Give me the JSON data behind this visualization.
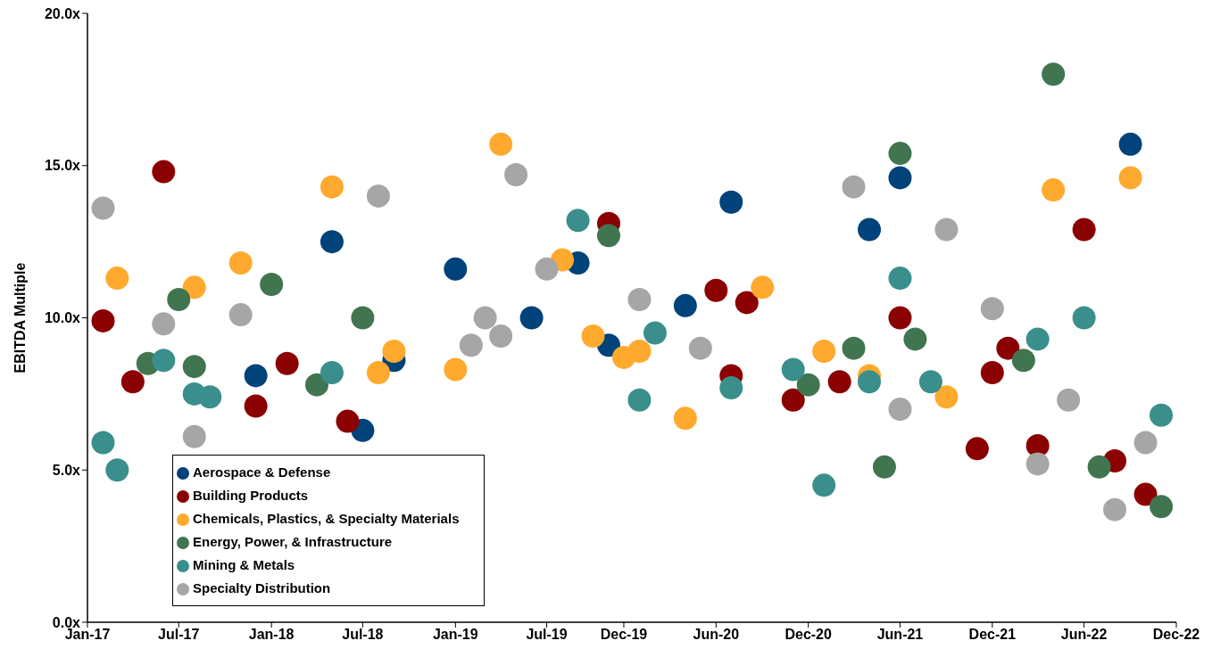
{
  "chart_data": {
    "type": "scatter",
    "ylabel": "EBITDA Multiple",
    "xlim": [
      "2017-01",
      "2022-12"
    ],
    "xticks": [
      {
        "value": "2017-01",
        "label": "Jan-17"
      },
      {
        "value": "2017-07",
        "label": "Jul-17"
      },
      {
        "value": "2018-01",
        "label": "Jan-18"
      },
      {
        "value": "2018-07",
        "label": "Jul-18"
      },
      {
        "value": "2019-01",
        "label": "Jan-19"
      },
      {
        "value": "2019-07",
        "label": "Jul-19"
      },
      {
        "value": "2019-12",
        "label": "Dec-19"
      },
      {
        "value": "2020-06",
        "label": "Jun-20"
      },
      {
        "value": "2020-12",
        "label": "Dec-20"
      },
      {
        "value": "2021-06",
        "label": "Jun-21"
      },
      {
        "value": "2021-12",
        "label": "Dec-21"
      },
      {
        "value": "2022-06",
        "label": "Jun-22"
      },
      {
        "value": "2022-12",
        "label": "Dec-22"
      }
    ],
    "ylim": [
      0,
      20
    ],
    "yticks": [
      {
        "value": 0,
        "label": "0.0x"
      },
      {
        "value": 5,
        "label": "5.0x"
      },
      {
        "value": 10,
        "label": "10.0x"
      },
      {
        "value": 15,
        "label": "15.0x"
      },
      {
        "value": 20,
        "label": "20.0x"
      }
    ],
    "grid": false,
    "legend": "bottom left",
    "marker": "circle",
    "series": [
      {
        "name": "Aerospace & Defense",
        "color": "#00427a",
        "x": [
          "2017-12",
          "2018-05",
          "2018-07",
          "2018-09",
          "2019-01",
          "2019-06",
          "2019-09",
          "2019-11",
          "2020-04",
          "2020-07",
          "2021-04",
          "2021-06",
          "2022-09"
        ],
        "values": [
          8.1,
          12.5,
          6.3,
          8.6,
          11.6,
          10.0,
          11.8,
          9.1,
          10.4,
          13.8,
          12.9,
          14.6,
          15.7
        ]
      },
      {
        "name": "Building Products",
        "color": "#8b0000",
        "x": [
          "2017-02",
          "2017-04",
          "2017-06",
          "2017-12",
          "2018-02",
          "2018-06",
          "2019-11",
          "2020-06",
          "2020-07",
          "2020-08",
          "2020-11",
          "2021-02",
          "2021-06",
          "2021-11",
          "2021-12",
          "2022-01",
          "2022-03",
          "2022-06",
          "2022-08",
          "2022-10"
        ],
        "values": [
          9.9,
          7.9,
          14.8,
          7.1,
          8.5,
          6.6,
          13.1,
          10.9,
          8.1,
          10.5,
          7.3,
          7.9,
          10.0,
          5.7,
          8.2,
          9.0,
          5.8,
          12.9,
          5.3,
          4.2
        ]
      },
      {
        "name": "Chemicals, Plastics, & Specialty Materials",
        "color": "#ffa92e",
        "x": [
          "2017-03",
          "2017-08",
          "2017-11",
          "2018-05",
          "2018-08",
          "2018-09",
          "2019-01",
          "2019-04",
          "2019-08",
          "2019-10",
          "2019-12",
          "2020-01",
          "2020-04",
          "2020-09",
          "2021-01",
          "2021-04",
          "2021-09",
          "2022-04",
          "2022-09"
        ],
        "values": [
          11.3,
          11.0,
          11.8,
          14.3,
          8.2,
          8.9,
          8.3,
          15.7,
          11.9,
          9.4,
          8.7,
          8.9,
          6.7,
          11.0,
          8.9,
          8.1,
          7.4,
          14.2,
          14.6
        ]
      },
      {
        "name": "Energy, Power, & Infrastructure",
        "color": "#417550",
        "x": [
          "2017-05",
          "2017-07",
          "2017-08",
          "2018-01",
          "2018-04",
          "2018-07",
          "2019-11",
          "2020-12",
          "2021-03",
          "2021-05",
          "2021-06",
          "2021-07",
          "2022-02",
          "2022-04",
          "2022-07",
          "2022-11"
        ],
        "values": [
          8.5,
          10.6,
          8.4,
          11.1,
          7.8,
          10.0,
          12.7,
          7.8,
          9.0,
          5.1,
          15.4,
          9.3,
          8.6,
          18.0,
          5.1,
          3.8
        ]
      },
      {
        "name": "Mining & Metals",
        "color": "#3a8f8c",
        "x": [
          "2017-02",
          "2017-03",
          "2017-06",
          "2017-08",
          "2017-09",
          "2018-05",
          "2019-09",
          "2020-01",
          "2020-02",
          "2020-07",
          "2020-11",
          "2021-01",
          "2021-04",
          "2021-06",
          "2021-08",
          "2022-03",
          "2022-06",
          "2022-11"
        ],
        "values": [
          5.9,
          5.0,
          8.6,
          7.5,
          7.4,
          8.2,
          13.2,
          7.3,
          9.5,
          7.7,
          8.3,
          4.5,
          7.9,
          11.3,
          7.9,
          9.3,
          10.0,
          6.8
        ]
      },
      {
        "name": "Specialty Distribution",
        "color": "#a6a6a6",
        "x": [
          "2017-02",
          "2017-06",
          "2017-08",
          "2017-11",
          "2018-08",
          "2019-02",
          "2019-03",
          "2019-04",
          "2019-05",
          "2019-07",
          "2020-01",
          "2020-05",
          "2021-03",
          "2021-06",
          "2021-09",
          "2021-12",
          "2022-03",
          "2022-05",
          "2022-08",
          "2022-10"
        ],
        "values": [
          13.6,
          9.8,
          6.1,
          10.1,
          14.0,
          9.1,
          10.0,
          9.4,
          14.7,
          11.6,
          10.6,
          9.0,
          14.3,
          7.0,
          12.9,
          10.3,
          5.2,
          7.3,
          3.7,
          5.9
        ]
      }
    ]
  }
}
